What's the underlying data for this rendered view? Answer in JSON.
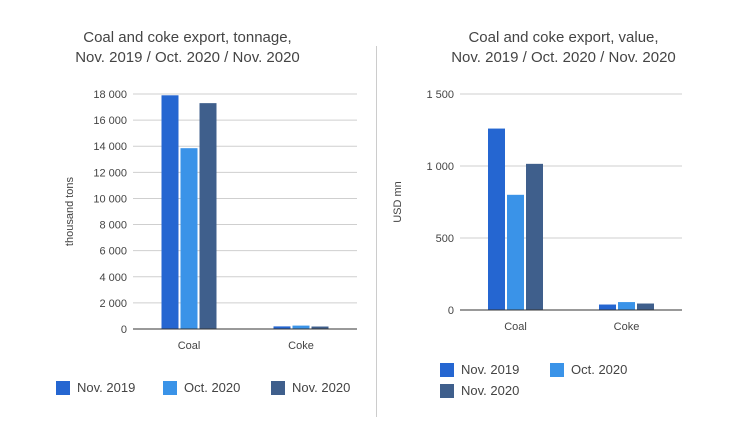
{
  "colors": {
    "nov2019": "#2566d1",
    "oct2020": "#3a93e8",
    "nov2020": "#3f5f8c",
    "grid": "#cfcfcf",
    "axis": "#333333"
  },
  "chart_data": [
    {
      "type": "bar",
      "title_line1": "Coal and coke export, tonnage,",
      "title_line2": "Nov. 2019 / Oct. 2020 / Nov. 2020",
      "ylabel": "thousand tons",
      "categories": [
        "Coal",
        "Coke"
      ],
      "ylim": [
        0,
        18000
      ],
      "yticks": [
        0,
        2000,
        4000,
        6000,
        8000,
        10000,
        12000,
        14000,
        16000,
        18000
      ],
      "ytick_labels": [
        "0",
        "2 000",
        "4 000",
        "6 000",
        "8 000",
        "10 000",
        "12 000",
        "14 000",
        "16 000",
        "18 000"
      ],
      "grid": true,
      "legend_position": "bottom",
      "series": [
        {
          "name": "Nov. 2019",
          "values": [
            17900,
            200
          ]
        },
        {
          "name": "Oct. 2020",
          "values": [
            13850,
            260
          ]
        },
        {
          "name": "Nov. 2020",
          "values": [
            17300,
            190
          ]
        }
      ]
    },
    {
      "type": "bar",
      "title_line1": "Coal and coke export, value,",
      "title_line2": "Nov. 2019 / Oct. 2020 / Nov. 2020",
      "ylabel": "USD mn",
      "categories": [
        "Coal",
        "Coke"
      ],
      "ylim": [
        0,
        1500
      ],
      "yticks": [
        0,
        500,
        1000,
        1500
      ],
      "ytick_labels": [
        "0",
        "500",
        "1 000",
        "1 500"
      ],
      "grid": true,
      "legend_position": "bottom",
      "series": [
        {
          "name": "Nov. 2019",
          "values": [
            1260,
            38
          ]
        },
        {
          "name": "Oct. 2020",
          "values": [
            800,
            55
          ]
        },
        {
          "name": "Nov. 2020",
          "values": [
            1015,
            45
          ]
        }
      ]
    }
  ]
}
